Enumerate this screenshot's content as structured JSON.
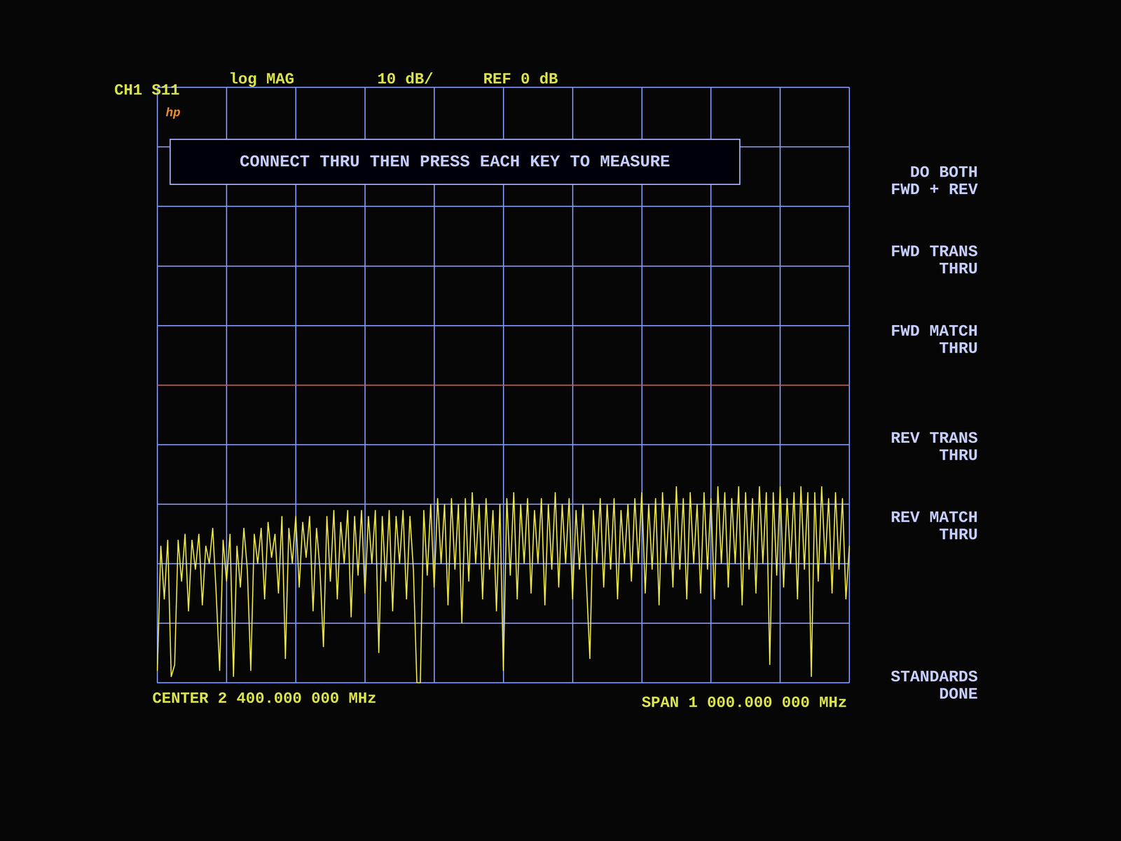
{
  "chart_data": {
    "type": "line",
    "title": "CH1 S11",
    "header": [
      "log MAG",
      "10 dB/",
      "REF 0 dB"
    ],
    "logo": "hp",
    "message": "CONNECT THRU THEN PRESS EACH KEY TO MEASURE",
    "softkeys": [
      [
        "DO BOTH",
        "FWD + REV"
      ],
      [
        "FWD TRANS",
        "THRU"
      ],
      [
        "FWD MATCH",
        "THRU"
      ],
      [
        "REV TRANS",
        "THRU"
      ],
      [
        "REV MATCH",
        "THRU"
      ],
      [
        "STANDARDS",
        "DONE"
      ]
    ],
    "xlabel_left": "CENTER 2 400.000 000 MHz",
    "xlabel_right": "SPAN 1 000.000 000 MHz",
    "xlim": [
      1900,
      2900
    ],
    "xticks": [
      1900,
      2000,
      2100,
      2200,
      2300,
      2400,
      2500,
      2600,
      2700,
      2800,
      2900
    ],
    "ylim": [
      -50,
      50
    ],
    "yticks": [
      -50,
      -40,
      -30,
      -20,
      -10,
      0,
      10,
      20,
      30,
      40,
      50
    ],
    "grid": true,
    "tick_labels": false,
    "reference": {
      "value": 0,
      "color": "#f04848"
    },
    "x": [
      1900,
      1905,
      1910,
      1915,
      1920,
      1925,
      1930,
      1935,
      1940,
      1945,
      1950,
      1955,
      1960,
      1965,
      1970,
      1975,
      1980,
      1985,
      1990,
      1995,
      2000,
      2005,
      2010,
      2015,
      2020,
      2025,
      2030,
      2035,
      2040,
      2045,
      2050,
      2055,
      2060,
      2065,
      2070,
      2075,
      2080,
      2085,
      2090,
      2095,
      2100,
      2105,
      2110,
      2115,
      2120,
      2125,
      2130,
      2135,
      2140,
      2145,
      2150,
      2155,
      2160,
      2165,
      2170,
      2175,
      2180,
      2185,
      2190,
      2195,
      2200,
      2205,
      2210,
      2215,
      2220,
      2225,
      2230,
      2235,
      2240,
      2245,
      2250,
      2255,
      2260,
      2265,
      2270,
      2275,
      2280,
      2285,
      2290,
      2295,
      2300,
      2305,
      2310,
      2315,
      2320,
      2325,
      2330,
      2335,
      2340,
      2345,
      2350,
      2355,
      2360,
      2365,
      2370,
      2375,
      2380,
      2385,
      2390,
      2395,
      2400,
      2405,
      2410,
      2415,
      2420,
      2425,
      2430,
      2435,
      2440,
      2445,
      2450,
      2455,
      2460,
      2465,
      2470,
      2475,
      2480,
      2485,
      2490,
      2495,
      2500,
      2505,
      2510,
      2515,
      2520,
      2525,
      2530,
      2535,
      2540,
      2545,
      2550,
      2555,
      2560,
      2565,
      2570,
      2575,
      2580,
      2585,
      2590,
      2595,
      2600,
      2605,
      2610,
      2615,
      2620,
      2625,
      2630,
      2635,
      2640,
      2645,
      2650,
      2655,
      2660,
      2665,
      2670,
      2675,
      2680,
      2685,
      2690,
      2695,
      2700,
      2705,
      2710,
      2715,
      2720,
      2725,
      2730,
      2735,
      2740,
      2745,
      2750,
      2755,
      2760,
      2765,
      2770,
      2775,
      2780,
      2785,
      2790,
      2795,
      2800,
      2805,
      2810,
      2815,
      2820,
      2825,
      2830,
      2835,
      2840,
      2845,
      2850,
      2855,
      2860,
      2865,
      2870,
      2875,
      2880,
      2885,
      2890,
      2895,
      2900
    ],
    "series": [
      {
        "color": "#e4e04a",
        "values": [
          -48,
          -27,
          -36,
          -26,
          -49,
          -47,
          -26,
          -33,
          -25,
          -38,
          -26,
          -31,
          -25,
          -37,
          -27,
          -30,
          -24,
          -35,
          -48,
          -26,
          -33,
          -25,
          -49,
          -27,
          -34,
          -24,
          -31,
          -48,
          -25,
          -30,
          -24,
          -36,
          -23,
          -29,
          -25,
          -35,
          -22,
          -46,
          -24,
          -30,
          -22,
          -34,
          -23,
          -29,
          -22,
          -38,
          -24,
          -31,
          -44,
          -22,
          -33,
          -21,
          -36,
          -23,
          -30,
          -21,
          -39,
          -22,
          -32,
          -21,
          -35,
          -22,
          -30,
          -21,
          -45,
          -22,
          -33,
          -21,
          -38,
          -22,
          -30,
          -21,
          -36,
          -22,
          -31,
          -50,
          -50,
          -21,
          -32,
          -20,
          -34,
          -19,
          -30,
          -20,
          -37,
          -19,
          -31,
          -20,
          -40,
          -19,
          -33,
          -18,
          -30,
          -20,
          -36,
          -19,
          -31,
          -21,
          -38,
          -20,
          -48,
          -19,
          -32,
          -18,
          -36,
          -20,
          -30,
          -19,
          -35,
          -21,
          -30,
          -19,
          -37,
          -20,
          -31,
          -18,
          -34,
          -20,
          -30,
          -19,
          -36,
          -21,
          -31,
          -20,
          -33,
          -46,
          -21,
          -30,
          -19,
          -34,
          -20,
          -31,
          -19,
          -36,
          -21,
          -30,
          -20,
          -33,
          -19,
          -30,
          -18,
          -35,
          -20,
          -31,
          -19,
          -37,
          -18,
          -30,
          -20,
          -34,
          -17,
          -31,
          -19,
          -36,
          -18,
          -30,
          -20,
          -35,
          -18,
          -31,
          -19,
          -36,
          -17,
          -30,
          -18,
          -34,
          -19,
          -30,
          -17,
          -37,
          -18,
          -31,
          -19,
          -35,
          -17,
          -30,
          -18,
          -47,
          -18,
          -32,
          -17,
          -34,
          -19,
          -30,
          -18,
          -36,
          -17,
          -31,
          -18,
          -49,
          -18,
          -33,
          -17,
          -30,
          -19,
          -35,
          -18,
          -31,
          -19,
          -36,
          -27
        ]
      }
    ]
  }
}
